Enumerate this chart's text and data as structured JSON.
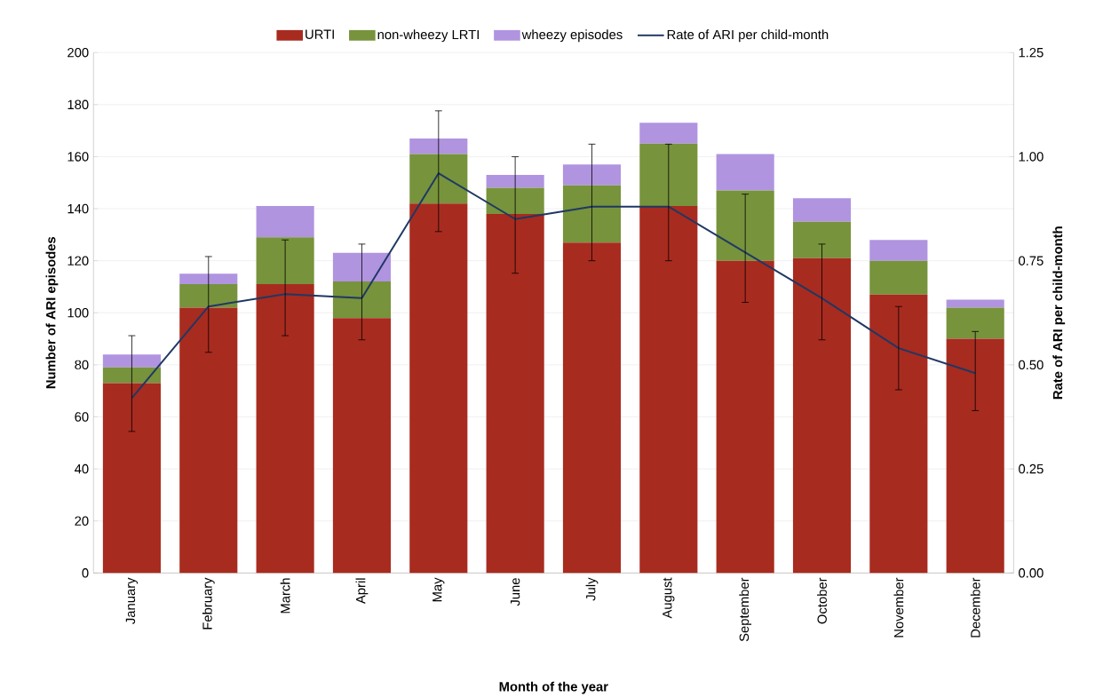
{
  "chart_data": {
    "type": "bar",
    "stacked": true,
    "xlabel": "Month of the year",
    "ylabel": "Number of ARI episodes",
    "y2label": "Rate of ARI per child-month",
    "categories": [
      "January",
      "February",
      "March",
      "April",
      "May",
      "June",
      "July",
      "August",
      "September",
      "October",
      "November",
      "December"
    ],
    "series": [
      {
        "name": "URTI",
        "color": "#a82b1f",
        "values": [
          73,
          102,
          111,
          98,
          142,
          138,
          127,
          141,
          120,
          121,
          107,
          90
        ]
      },
      {
        "name": "non-wheezy LRTI",
        "color": "#77933c",
        "values": [
          6,
          9,
          18,
          14,
          19,
          10,
          22,
          24,
          27,
          14,
          13,
          12
        ]
      },
      {
        "name": "wheezy episodes",
        "color": "#b094e0",
        "values": [
          5,
          4,
          12,
          11,
          6,
          5,
          8,
          8,
          14,
          9,
          8,
          3
        ]
      },
      {
        "name": "Rate of ARI per child-month",
        "type": "line",
        "axis": "y2",
        "color": "#1f3864",
        "values": [
          0.42,
          0.64,
          0.67,
          0.66,
          0.96,
          0.85,
          0.88,
          0.88,
          0.77,
          0.66,
          0.54,
          0.48
        ],
        "errors": [
          [
            0.34,
            0.57
          ],
          [
            0.53,
            0.76
          ],
          [
            0.57,
            0.8
          ],
          [
            0.56,
            0.79
          ],
          [
            0.82,
            1.11
          ],
          [
            0.72,
            1.0
          ],
          [
            0.75,
            1.03
          ],
          [
            0.75,
            1.03
          ],
          [
            0.65,
            0.91
          ],
          [
            0.56,
            0.79
          ],
          [
            0.44,
            0.64
          ],
          [
            0.39,
            0.58
          ]
        ]
      }
    ],
    "ylim": [
      0,
      200
    ],
    "yticks": [
      0,
      20,
      40,
      60,
      80,
      100,
      120,
      140,
      160,
      180,
      200
    ],
    "y2lim": [
      0,
      1.25
    ],
    "y2ticks": [
      {
        "value": 0,
        "label": "0.00"
      },
      {
        "value": 0.25,
        "label": "0.25"
      },
      {
        "value": 0.5,
        "label": "0.50"
      },
      {
        "value": 0.75,
        "label": "0.75"
      },
      {
        "value": 1.0,
        "label": "1.00"
      },
      {
        "value": 1.25,
        "label": "1.25"
      }
    ],
    "grid": "y",
    "legend": "top",
    "marker": "none"
  }
}
